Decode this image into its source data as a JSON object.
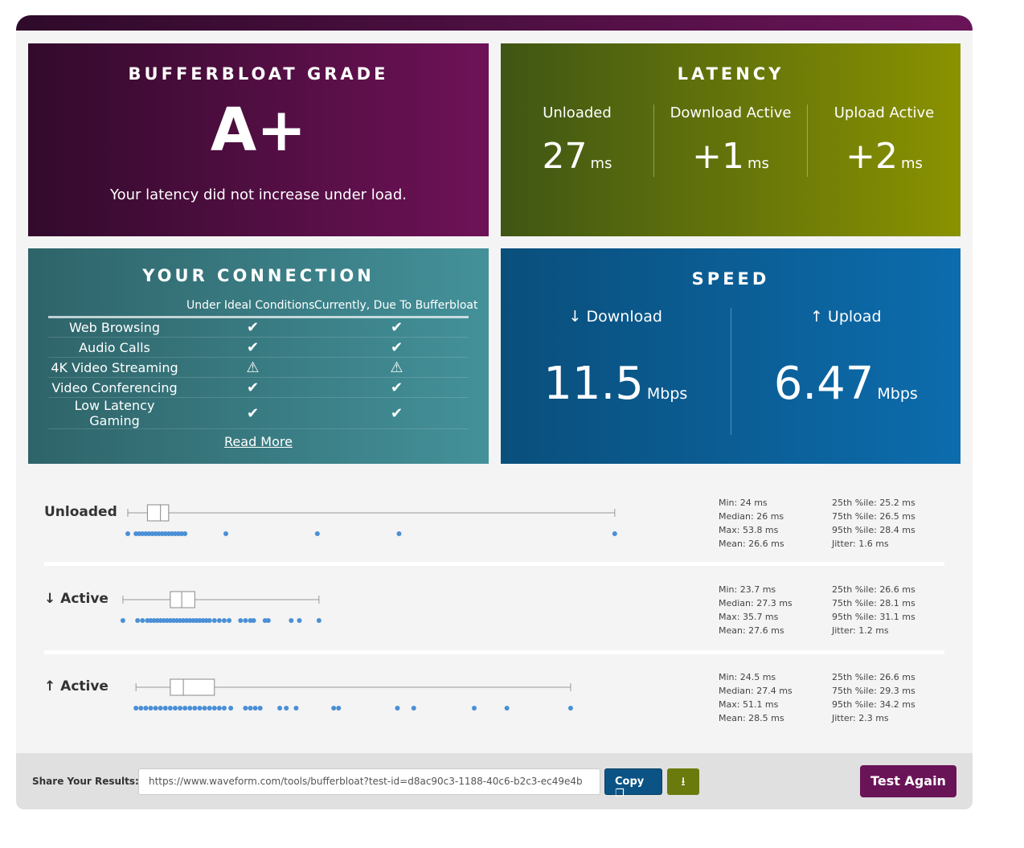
{
  "grade": {
    "title": "BUFFERBLOAT GRADE",
    "value": "A+",
    "message": "Your latency did not increase under load."
  },
  "latency": {
    "title": "LATENCY",
    "items": [
      {
        "label": "Unloaded",
        "value": "27",
        "unit": "ms"
      },
      {
        "label": "Download Active",
        "value": "+1",
        "unit": "ms"
      },
      {
        "label": "Upload Active",
        "value": "+2",
        "unit": "ms"
      }
    ]
  },
  "connection": {
    "title": "YOUR CONNECTION",
    "col1": "Under Ideal Conditions",
    "col2": "Currently, Due To Bufferbloat",
    "rows": [
      {
        "name": "Web Browsing",
        "ideal": "check",
        "current": "check"
      },
      {
        "name": "Audio Calls",
        "ideal": "check",
        "current": "check"
      },
      {
        "name": "4K Video Streaming",
        "ideal": "warning",
        "current": "warning"
      },
      {
        "name": "Video Conferencing",
        "ideal": "check",
        "current": "check"
      },
      {
        "name": "Low Latency Gaming",
        "ideal": "check",
        "current": "check"
      }
    ],
    "read_more": "Read More"
  },
  "speed": {
    "title": "SPEED",
    "download": {
      "label": "↓ Download",
      "value": "11.5",
      "unit": "Mbps"
    },
    "upload": {
      "label": "↑ Upload",
      "value": "6.47",
      "unit": "Mbps"
    }
  },
  "chart_data": {
    "type": "boxplot",
    "unit": "ms",
    "xlim": [
      7.8,
      58
    ],
    "rows": [
      {
        "label": "Unloaded",
        "min": 24,
        "q1": 25.2,
        "median": 26,
        "q3": 26.5,
        "max": 53.8,
        "stats": [
          "Min: 24 ms",
          "Median: 26 ms",
          "Max: 53.8 ms",
          "Mean: 26.6 ms",
          "25th %ile: 25.2 ms",
          "75th %ile: 26.5 ms",
          "95th %ile: 28.4 ms",
          "Jitter: 1.6 ms"
        ],
        "samples": [
          24,
          24.5,
          24.7,
          24.9,
          25.1,
          25.3,
          25.5,
          25.7,
          25.9,
          26.1,
          26.3,
          26.5,
          26.7,
          26.9,
          27.1,
          27.3,
          27.5,
          30,
          35.6,
          40.6,
          53.8
        ]
      },
      {
        "label": "↓ Active",
        "min": 23.7,
        "q1": 26.6,
        "median": 27.3,
        "q3": 28.1,
        "max": 35.7,
        "stats": [
          "Min: 23.7 ms",
          "Median: 27.3 ms",
          "Max: 35.7 ms",
          "Mean: 27.6 ms",
          "25th %ile: 26.6 ms",
          "75th %ile: 28.1 ms",
          "95th %ile: 31.1 ms",
          "Jitter: 1.2 ms"
        ],
        "samples": [
          23.7,
          24.6,
          24.9,
          25.2,
          25.4,
          25.6,
          25.8,
          26,
          26.2,
          26.4,
          26.6,
          26.8,
          27,
          27.2,
          27.4,
          27.6,
          27.8,
          28,
          28.2,
          28.4,
          28.6,
          28.8,
          29,
          29.3,
          29.6,
          29.9,
          30.2,
          30.9,
          31.2,
          31.5,
          31.7,
          32.4,
          32.6,
          34,
          34.5,
          35.7
        ]
      },
      {
        "label": "↑ Active",
        "min": 24.5,
        "q1": 26.6,
        "median": 27.4,
        "q3": 29.3,
        "max": 51.1,
        "stats": [
          "Min: 24.5 ms",
          "Median: 27.4 ms",
          "Max: 51.1 ms",
          "Mean: 28.5 ms",
          "25th %ile: 26.6 ms",
          "75th %ile: 29.3 ms",
          "95th %ile: 34.2 ms",
          "Jitter: 2.3 ms"
        ],
        "samples": [
          24.5,
          24.8,
          25.1,
          25.4,
          25.7,
          26,
          26.3,
          26.6,
          26.9,
          27.2,
          27.5,
          27.8,
          28.1,
          28.4,
          28.7,
          29,
          29.3,
          29.6,
          29.9,
          30.3,
          31.2,
          31.5,
          31.8,
          32.1,
          33.3,
          33.7,
          34.3,
          36.6,
          36.9,
          40.5,
          41.5,
          45.2,
          47.2,
          51.1
        ]
      }
    ]
  },
  "footer": {
    "share_label": "Share Your Results:",
    "url": "https://www.waveform.com/tools/bufferbloat?test-id=d8ac90c3-1188-40c6-b2c3-ec49e4b",
    "copy": "Copy",
    "test_again": "Test Again"
  },
  "colors": {
    "grade": "#6e1257",
    "latency": "#8a9200",
    "connection": "#44919a",
    "speed": "#0c6cad",
    "dots": "#4a8fd6"
  }
}
